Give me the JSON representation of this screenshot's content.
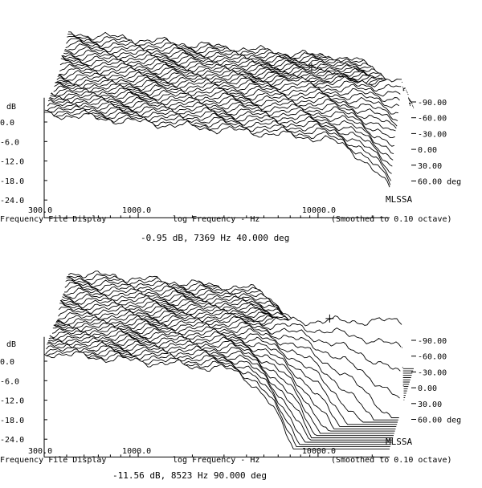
{
  "chart_data": [
    {
      "type": "line",
      "subtype": "waterfall-3d-polar-response",
      "y_axis": {
        "label": "dB",
        "ticks": [
          "0.0",
          "-6.0",
          "-12.0",
          "-18.0",
          "-24.0"
        ]
      },
      "x_axis": {
        "scale": "log",
        "ticks": [
          "300.0",
          "1000.0",
          "10000.0"
        ],
        "xlim": [
          300,
          25000
        ]
      },
      "xlabel": "log Frequency - Hz",
      "footer_left": "Frequency File Display",
      "footer_right": "(Smoothed to 0.10 octave)",
      "angle_axis": {
        "ticks": [
          "-90.00",
          "-60.00",
          "-30.00",
          "0.00",
          "30.00",
          "60.00 deg"
        ],
        "range": [
          -90,
          90
        ]
      },
      "brand": "MLSSA",
      "cursor": {
        "freq_hz": 7369,
        "db": -0.95,
        "angle_deg": 40
      },
      "cursor_readout": "-0.95 dB, 7369 Hz  40.000 deg",
      "series_summary": {
        "count": 37,
        "angle_step_deg": 5,
        "angle_range": [
          -90,
          90
        ],
        "rolloff_start_hz": 10000
      }
    },
    {
      "type": "line",
      "subtype": "waterfall-3d-polar-response",
      "y_axis": {
        "label": "dB",
        "ticks": [
          "0.0",
          "-6.0",
          "-12.0",
          "-18.0",
          "-24.0"
        ]
      },
      "x_axis": {
        "scale": "log",
        "ticks": [
          "300.0",
          "1000.0",
          "10000.0"
        ],
        "xlim": [
          300,
          25000
        ]
      },
      "xlabel": "log Frequency - Hz",
      "footer_left": "Frequency File Display",
      "footer_right": "(Smoothed to 0.10 octave)",
      "angle_axis": {
        "ticks": [
          "-90.00",
          "-60.00",
          "-30.00",
          "0.00",
          "30.00",
          "60.00 deg"
        ],
        "range": [
          -90,
          90
        ]
      },
      "brand": "MLSSA",
      "cursor": {
        "freq_hz": 8523,
        "db": -11.56,
        "angle_deg": 90
      },
      "cursor_readout": "-11.56 dB, 8523 Hz  90.000 deg",
      "series_summary": {
        "count": 37,
        "angle_step_deg": 5,
        "angle_range": [
          -90,
          90
        ],
        "rolloff_start_hz": 3000
      }
    }
  ]
}
